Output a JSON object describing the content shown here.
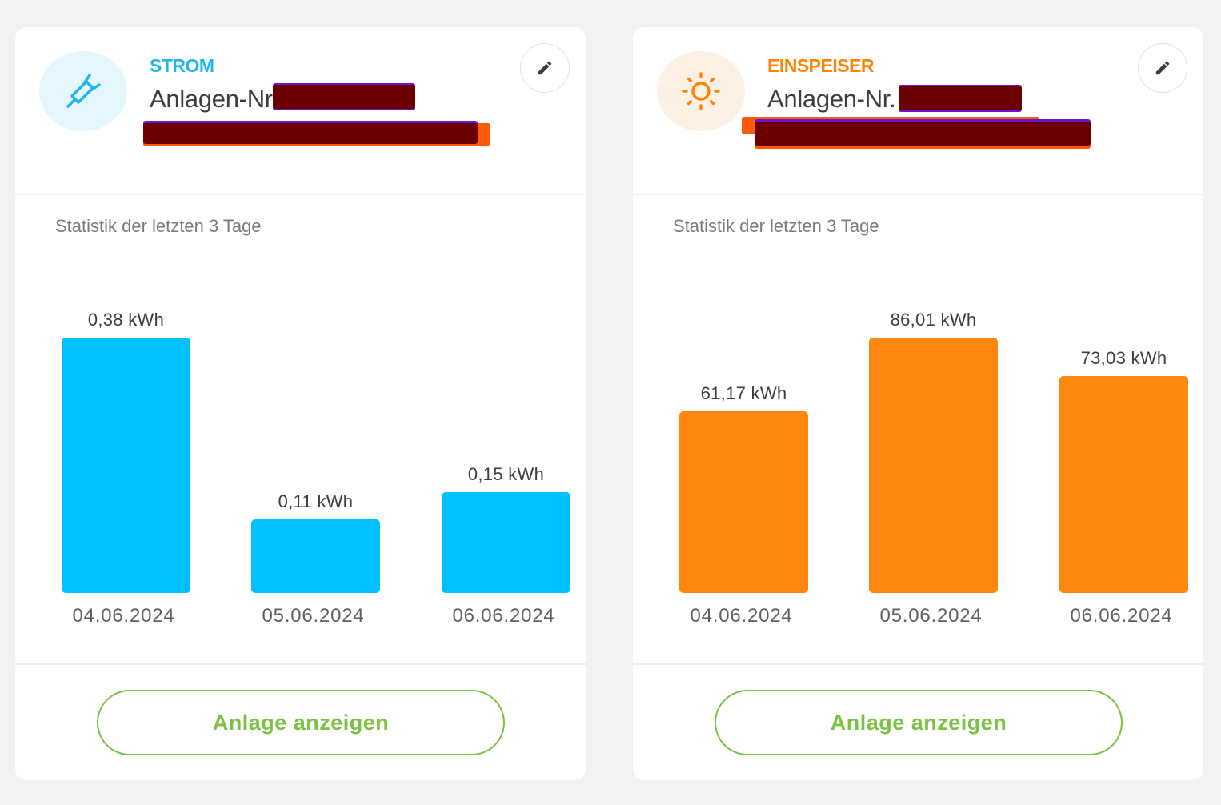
{
  "cards": [
    {
      "category": "STROM",
      "category_color": "#1fb5ec",
      "icon": "plug-icon",
      "icon_bg": "#e5f6fd",
      "plant_label": "Anlagen-Nr.",
      "stat_title": "Statistik der letzten 3 Tage",
      "bar_color": "#00c0ff",
      "button_label": "Anlage anzeigen",
      "chart_data": {
        "type": "bar",
        "categories": [
          "04.06.2024",
          "05.06.2024",
          "06.06.2024"
        ],
        "values": [
          0.38,
          0.11,
          0.15
        ],
        "value_labels": [
          "0,38 kWh",
          "0,11 kWh",
          "0,15 kWh"
        ],
        "unit": "kWh",
        "title": "Statistik der letzten 3 Tage"
      }
    },
    {
      "category": "EINSPEISER",
      "category_color": "#ff8200",
      "icon": "sun-icon",
      "icon_bg": "#fdf0e4",
      "plant_label": "Anlagen-Nr.",
      "stat_title": "Statistik der letzten 3 Tage",
      "bar_color": "#ff870f",
      "button_label": "Anlage anzeigen",
      "chart_data": {
        "type": "bar",
        "categories": [
          "04.06.2024",
          "05.06.2024",
          "06.06.2024"
        ],
        "values": [
          61.17,
          86.01,
          73.03
        ],
        "value_labels": [
          "61,17 kWh",
          "86,01 kWh",
          "73,03 kWh"
        ],
        "unit": "kWh",
        "title": "Statistik der letzten 3 Tage"
      }
    }
  ]
}
